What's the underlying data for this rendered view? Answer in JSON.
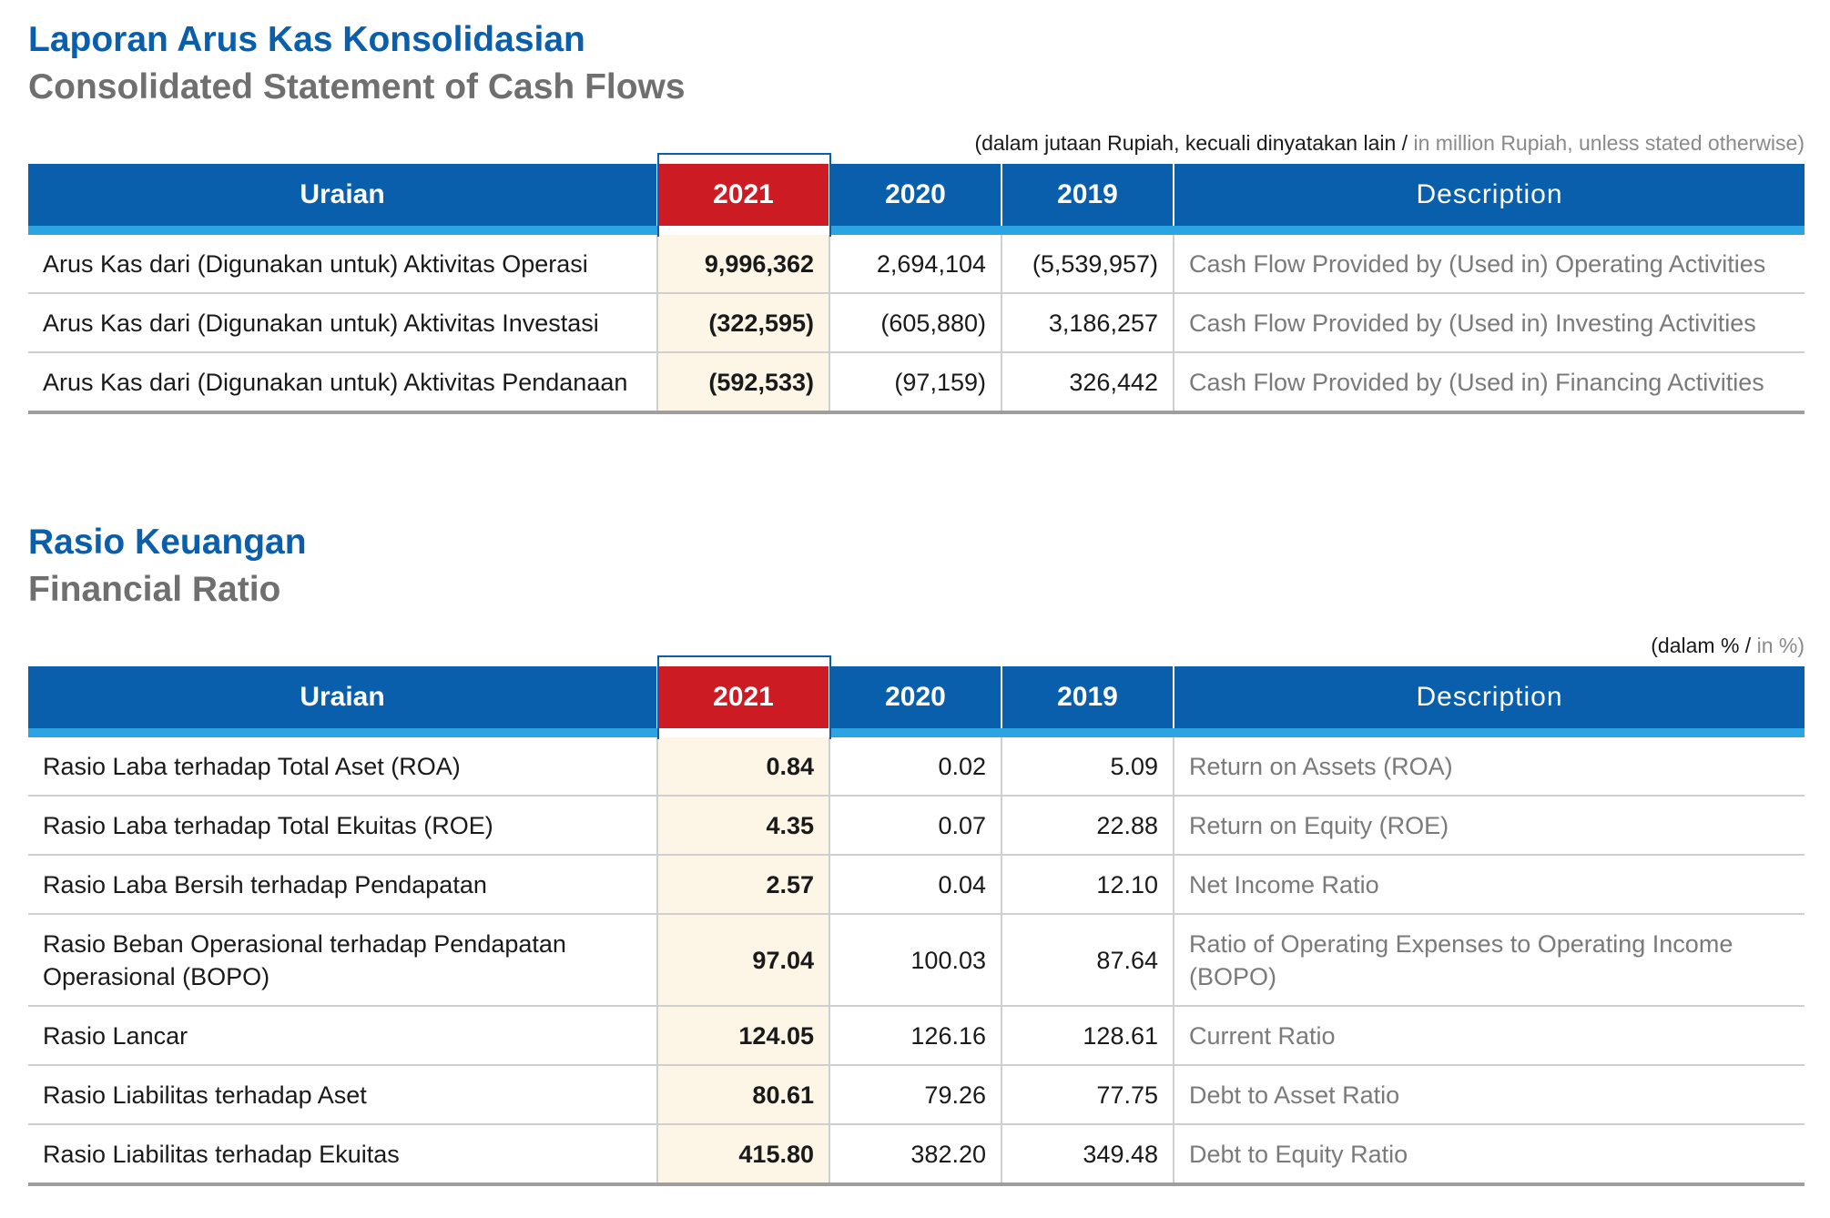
{
  "cash_flow": {
    "title_id": "Laporan Arus Kas Konsolidasian",
    "title_en": "Consolidated Statement of Cash Flows",
    "unit_id": "(dalam jutaan Rupiah, kecuali dinyatakan lain /",
    "unit_en": "in million Rupiah, unless stated otherwise)",
    "headers": [
      "Uraian",
      "2021",
      "2020",
      "2019",
      "Description"
    ],
    "rows": [
      {
        "uraian": "Arus Kas dari (Digunakan untuk) Aktivitas Operasi",
        "y2021": "9,996,362",
        "y2020": "2,694,104",
        "y2019": "(5,539,957)",
        "desc": "Cash Flow Provided by (Used in) Operating Activities"
      },
      {
        "uraian": "Arus Kas dari (Digunakan untuk) Aktivitas Investasi",
        "y2021": "(322,595)",
        "y2020": "(605,880)",
        "y2019": "3,186,257",
        "desc": "Cash Flow Provided by (Used in) Investing Activities"
      },
      {
        "uraian": "Arus Kas dari (Digunakan untuk) Aktivitas Pendanaan",
        "y2021": "(592,533)",
        "y2020": "(97,159)",
        "y2019": "326,442",
        "desc": "Cash Flow Provided by (Used in) Financing Activities"
      }
    ]
  },
  "ratio": {
    "title_id": "Rasio Keuangan",
    "title_en": "Financial Ratio",
    "unit_id": "(dalam % /",
    "unit_en": "in %)",
    "headers": [
      "Uraian",
      "2021",
      "2020",
      "2019",
      "Description"
    ],
    "rows": [
      {
        "uraian": "Rasio Laba terhadap Total Aset (ROA)",
        "y2021": "0.84",
        "y2020": "0.02",
        "y2019": "5.09",
        "desc": "Return on Assets (ROA)"
      },
      {
        "uraian": "Rasio Laba terhadap Total Ekuitas (ROE)",
        "y2021": "4.35",
        "y2020": "0.07",
        "y2019": "22.88",
        "desc": "Return on Equity (ROE)"
      },
      {
        "uraian": "Rasio Laba Bersih terhadap Pendapatan",
        "y2021": "2.57",
        "y2020": "0.04",
        "y2019": "12.10",
        "desc": "Net Income Ratio"
      },
      {
        "uraian": "Rasio Beban Operasional terhadap Pendapatan Operasional (BOPO)",
        "y2021": "97.04",
        "y2020": "100.03",
        "y2019": "87.64",
        "desc": "Ratio of Operating Expenses to Operating Income (BOPO)"
      },
      {
        "uraian": "Rasio Lancar",
        "y2021": "124.05",
        "y2020": "126.16",
        "y2019": "128.61",
        "desc": "Current Ratio"
      },
      {
        "uraian": "Rasio Liabilitas terhadap Aset",
        "y2021": "80.61",
        "y2020": "79.26",
        "y2019": "77.75",
        "desc": "Debt to Asset Ratio"
      },
      {
        "uraian": "Rasio Liabilitas terhadap Ekuitas",
        "y2021": "415.80",
        "y2020": "382.20",
        "y2019": "349.48",
        "desc": "Debt to Equity Ratio"
      }
    ]
  },
  "colors": {
    "header_blue": "#0a5fad",
    "highlight_red": "#cc1b22",
    "accent_cyan": "#2aa4e2",
    "highlight_cell": "#fdf5e6"
  }
}
